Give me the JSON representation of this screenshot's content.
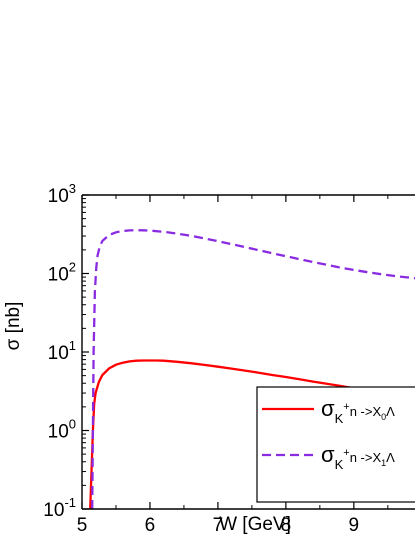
{
  "chart_data": {
    "type": "line",
    "xlabel": "W [GeV]",
    "ylabel": "σ [nb]",
    "xlim": [
      5,
      9.9
    ],
    "ylim": [
      0.1,
      1000
    ],
    "yscale": "log",
    "x_ticks": [
      5,
      6,
      7,
      8,
      9
    ],
    "x_tick_labels": [
      "5",
      "6",
      "7",
      "8",
      "9"
    ],
    "y_ticks": [
      0.1,
      1,
      10,
      100,
      1000
    ],
    "y_tick_labels": [
      {
        "base": "10",
        "exp": "-1"
      },
      {
        "base": "10",
        "exp": "0"
      },
      {
        "base": "10",
        "exp": "1"
      },
      {
        "base": "10",
        "exp": "2"
      },
      {
        "base": "10",
        "exp": "3"
      }
    ],
    "grid": false,
    "legend_position": "lower-right",
    "series": [
      {
        "legend_label": {
          "sigma": "σ",
          "sub": "K",
          "sup": "+",
          "rest": "n ->X",
          "sub2": "0",
          "tail": "Λ"
        },
        "color": "#ff0000",
        "dash": "solid",
        "x": [
          5.12,
          5.14,
          5.16,
          5.18,
          5.2,
          5.25,
          5.3,
          5.4,
          5.5,
          5.6,
          5.7,
          5.8,
          5.9,
          6.0,
          6.1,
          6.2,
          6.4,
          6.6,
          6.8,
          7.0,
          7.2,
          7.4,
          7.6,
          7.8,
          8.0,
          8.2,
          8.4,
          8.6,
          8.8,
          9.0,
          9.2,
          9.4,
          9.6,
          9.8,
          9.9
        ],
        "y": [
          0.1,
          0.3,
          1.0,
          2.2,
          3.0,
          4.2,
          5.1,
          6.2,
          6.9,
          7.3,
          7.6,
          7.75,
          7.8,
          7.8,
          7.8,
          7.75,
          7.5,
          7.2,
          6.85,
          6.5,
          6.15,
          5.8,
          5.45,
          5.1,
          4.8,
          4.5,
          4.2,
          3.95,
          3.7,
          3.45,
          3.2,
          3.0,
          2.8,
          2.65,
          2.55
        ]
      },
      {
        "legend_label": {
          "sigma": "σ",
          "sub": "K",
          "sup": "+",
          "rest": "n ->X",
          "sub2": "1",
          "tail": "Λ"
        },
        "color": "#8a2be2",
        "dash": "dashed",
        "x": [
          5.15,
          5.17,
          5.19,
          5.21,
          5.23,
          5.26,
          5.3,
          5.4,
          5.5,
          5.6,
          5.7,
          5.8,
          5.9,
          6.0,
          6.2,
          6.4,
          6.6,
          6.8,
          7.0,
          7.2,
          7.4,
          7.6,
          7.8,
          8.0,
          8.2,
          8.4,
          8.6,
          8.8,
          9.0,
          9.2,
          9.4,
          9.6,
          9.8,
          9.9
        ],
        "y": [
          0.1,
          10,
          60,
          120,
          170,
          220,
          260,
          310,
          335,
          348,
          354,
          356,
          355,
          352,
          340,
          322,
          302,
          280,
          258,
          237,
          217,
          198,
          181,
          166,
          152,
          140,
          129,
          119,
          111,
          104,
          98,
          93,
          89,
          87
        ]
      }
    ]
  }
}
